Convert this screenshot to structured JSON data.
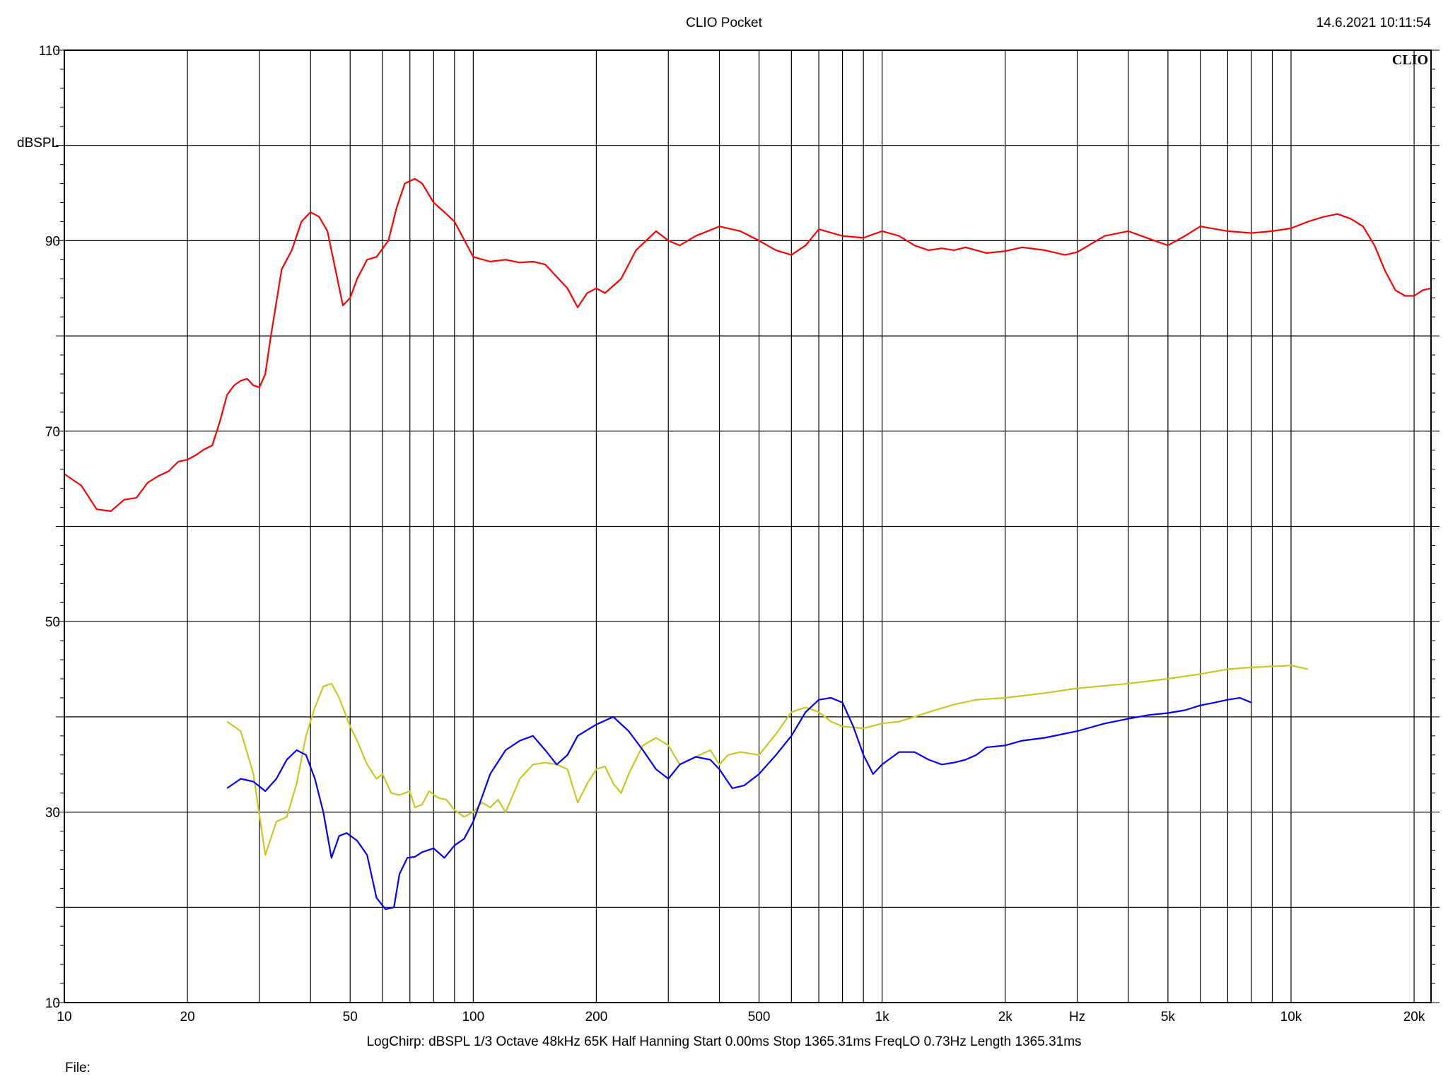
{
  "header": {
    "title": "CLIO Pocket",
    "timestamp": "14.6.2021 10:11:54"
  },
  "footer": {
    "status_line": "LogChirp:  dBSPL   1/3 Octave   48kHz   65K   Half Hanning    Start 0.00ms     Stop 1365.31ms     FreqLO 0.73Hz     Length 1365.31ms",
    "file_label": "File:"
  },
  "chart_data": {
    "type": "line",
    "logo": "CLIO",
    "ylabel": "dBSPL",
    "xlabel": "Hz",
    "xscale": "log",
    "xlim": [
      10,
      22000
    ],
    "ylim": [
      10,
      110
    ],
    "grid": true,
    "x_ticks": [
      {
        "value": 10,
        "label": "10"
      },
      {
        "value": 20,
        "label": "20"
      },
      {
        "value": 50,
        "label": "50"
      },
      {
        "value": 100,
        "label": "100"
      },
      {
        "value": 200,
        "label": "200"
      },
      {
        "value": 500,
        "label": "500"
      },
      {
        "value": 1000,
        "label": "1k"
      },
      {
        "value": 2000,
        "label": "2k"
      },
      {
        "value": 5000,
        "label": "5k"
      },
      {
        "value": 10000,
        "label": "10k"
      },
      {
        "value": 20000,
        "label": "20k"
      }
    ],
    "x_unit_label_at": 3000,
    "y_ticks": [
      {
        "value": 110,
        "label": "110"
      },
      {
        "value": 90,
        "label": "90"
      },
      {
        "value": 70,
        "label": "70"
      },
      {
        "value": 50,
        "label": "50"
      },
      {
        "value": 30,
        "label": "30"
      },
      {
        "value": 10,
        "label": "10"
      }
    ],
    "series": [
      {
        "color": "#ff0000",
        "points": [
          [
            10,
            65.5
          ],
          [
            11,
            64.3
          ],
          [
            12,
            61.8
          ],
          [
            13,
            61.6
          ],
          [
            14,
            62.8
          ],
          [
            15,
            63
          ],
          [
            16,
            64.6
          ],
          [
            17,
            65.3
          ],
          [
            18,
            65.8
          ],
          [
            19,
            66.8
          ],
          [
            20,
            67
          ],
          [
            21,
            67.5
          ],
          [
            22,
            68.1
          ],
          [
            23,
            68.5
          ],
          [
            24,
            71
          ],
          [
            25,
            73.8
          ],
          [
            26,
            74.8
          ],
          [
            27,
            75.3
          ],
          [
            28,
            75.5
          ],
          [
            29,
            74.8
          ],
          [
            30,
            74.6
          ],
          [
            31,
            76
          ],
          [
            32,
            80
          ],
          [
            34,
            87
          ],
          [
            36,
            89
          ],
          [
            38,
            92
          ],
          [
            40,
            93
          ],
          [
            42,
            92.5
          ],
          [
            44,
            91
          ],
          [
            46,
            87
          ],
          [
            48,
            83.2
          ],
          [
            50,
            84
          ],
          [
            52,
            86
          ],
          [
            55,
            88
          ],
          [
            58,
            88.3
          ],
          [
            62,
            90
          ],
          [
            65,
            93.5
          ],
          [
            68,
            96
          ],
          [
            72,
            96.5
          ],
          [
            75,
            96
          ],
          [
            80,
            94
          ],
          [
            85,
            93
          ],
          [
            90,
            92
          ],
          [
            100,
            88.3
          ],
          [
            110,
            87.8
          ],
          [
            120,
            88
          ],
          [
            130,
            87.7
          ],
          [
            140,
            87.8
          ],
          [
            150,
            87.5
          ],
          [
            170,
            85
          ],
          [
            180,
            83
          ],
          [
            190,
            84.5
          ],
          [
            200,
            85
          ],
          [
            210,
            84.5
          ],
          [
            230,
            86
          ],
          [
            250,
            89
          ],
          [
            280,
            91
          ],
          [
            300,
            90
          ],
          [
            320,
            89.5
          ],
          [
            350,
            90.5
          ],
          [
            400,
            91.5
          ],
          [
            450,
            91
          ],
          [
            500,
            90
          ],
          [
            550,
            89
          ],
          [
            600,
            88.5
          ],
          [
            650,
            89.5
          ],
          [
            700,
            91.2
          ],
          [
            800,
            90.5
          ],
          [
            900,
            90.3
          ],
          [
            1000,
            91
          ],
          [
            1100,
            90.5
          ],
          [
            1200,
            89.5
          ],
          [
            1300,
            89
          ],
          [
            1400,
            89.2
          ],
          [
            1500,
            89
          ],
          [
            1600,
            89.3
          ],
          [
            1800,
            88.7
          ],
          [
            2000,
            88.9
          ],
          [
            2200,
            89.3
          ],
          [
            2500,
            89
          ],
          [
            2800,
            88.5
          ],
          [
            3000,
            88.8
          ],
          [
            3500,
            90.5
          ],
          [
            4000,
            91
          ],
          [
            4500,
            90.2
          ],
          [
            5000,
            89.5
          ],
          [
            5500,
            90.5
          ],
          [
            6000,
            91.5
          ],
          [
            7000,
            91
          ],
          [
            8000,
            90.8
          ],
          [
            9000,
            91
          ],
          [
            10000,
            91.3
          ],
          [
            11000,
            92
          ],
          [
            12000,
            92.5
          ],
          [
            13000,
            92.8
          ],
          [
            14000,
            92.3
          ],
          [
            15000,
            91.5
          ],
          [
            16000,
            89.5
          ],
          [
            17000,
            86.8
          ],
          [
            18000,
            84.8
          ],
          [
            19000,
            84.2
          ],
          [
            20000,
            84.2
          ],
          [
            21000,
            84.8
          ],
          [
            22000,
            85
          ]
        ]
      },
      {
        "color": "#c8c820",
        "points": [
          [
            25,
            39.5
          ],
          [
            27,
            38.5
          ],
          [
            29,
            34
          ],
          [
            31,
            25.5
          ],
          [
            33,
            29
          ],
          [
            35,
            29.5
          ],
          [
            37,
            33
          ],
          [
            39,
            38
          ],
          [
            41,
            41
          ],
          [
            43,
            43.2
          ],
          [
            45,
            43.5
          ],
          [
            47,
            42
          ],
          [
            50,
            39
          ],
          [
            52,
            37.5
          ],
          [
            55,
            35
          ],
          [
            58,
            33.5
          ],
          [
            60,
            34
          ],
          [
            63,
            32
          ],
          [
            66,
            31.8
          ],
          [
            70,
            32.2
          ],
          [
            72,
            30.5
          ],
          [
            75,
            30.8
          ],
          [
            78,
            32.2
          ],
          [
            82,
            31.5
          ],
          [
            86,
            31.3
          ],
          [
            90,
            30.2
          ],
          [
            95,
            29.5
          ],
          [
            100,
            30
          ],
          [
            105,
            31
          ],
          [
            110,
            30.5
          ],
          [
            115,
            31.3
          ],
          [
            120,
            30
          ],
          [
            130,
            33.5
          ],
          [
            140,
            35
          ],
          [
            150,
            35.2
          ],
          [
            160,
            35
          ],
          [
            170,
            34.5
          ],
          [
            180,
            31
          ],
          [
            190,
            33
          ],
          [
            200,
            34.5
          ],
          [
            210,
            34.8
          ],
          [
            220,
            33
          ],
          [
            230,
            32
          ],
          [
            240,
            34
          ],
          [
            260,
            37
          ],
          [
            280,
            37.8
          ],
          [
            300,
            37
          ],
          [
            320,
            35
          ],
          [
            350,
            35.8
          ],
          [
            380,
            36.5
          ],
          [
            400,
            35
          ],
          [
            420,
            36
          ],
          [
            450,
            36.3
          ],
          [
            500,
            36
          ],
          [
            550,
            38.2
          ],
          [
            600,
            40.5
          ],
          [
            650,
            41
          ],
          [
            700,
            40.5
          ],
          [
            750,
            39.5
          ],
          [
            800,
            39
          ],
          [
            900,
            38.8
          ],
          [
            1000,
            39.3
          ],
          [
            1100,
            39.5
          ],
          [
            1200,
            40
          ],
          [
            1300,
            40.5
          ],
          [
            1500,
            41.3
          ],
          [
            1700,
            41.8
          ],
          [
            2000,
            42
          ],
          [
            2500,
            42.5
          ],
          [
            3000,
            43
          ],
          [
            4000,
            43.5
          ],
          [
            5000,
            44
          ],
          [
            6000,
            44.5
          ],
          [
            7000,
            45
          ],
          [
            8000,
            45.2
          ],
          [
            9000,
            45.3
          ],
          [
            10000,
            45.4
          ],
          [
            11000,
            45
          ]
        ]
      },
      {
        "color": "#0000ff",
        "points": [
          [
            25,
            32.5
          ],
          [
            27,
            33.5
          ],
          [
            29,
            33.2
          ],
          [
            31,
            32.2
          ],
          [
            33,
            33.5
          ],
          [
            35,
            35.5
          ],
          [
            37,
            36.5
          ],
          [
            39,
            36
          ],
          [
            41,
            33.5
          ],
          [
            43,
            30
          ],
          [
            45,
            25.2
          ],
          [
            47,
            27.5
          ],
          [
            49,
            27.8
          ],
          [
            52,
            27
          ],
          [
            55,
            25.5
          ],
          [
            58,
            21
          ],
          [
            61,
            19.8
          ],
          [
            64,
            20
          ],
          [
            66,
            23.5
          ],
          [
            69,
            25.2
          ],
          [
            72,
            25.3
          ],
          [
            75,
            25.8
          ],
          [
            80,
            26.2
          ],
          [
            85,
            25.2
          ],
          [
            90,
            26.5
          ],
          [
            95,
            27.2
          ],
          [
            100,
            29
          ],
          [
            110,
            34
          ],
          [
            120,
            36.5
          ],
          [
            130,
            37.5
          ],
          [
            140,
            38
          ],
          [
            150,
            36.5
          ],
          [
            160,
            35
          ],
          [
            170,
            36
          ],
          [
            180,
            38
          ],
          [
            200,
            39.2
          ],
          [
            220,
            40
          ],
          [
            240,
            38.5
          ],
          [
            260,
            36.5
          ],
          [
            280,
            34.5
          ],
          [
            300,
            33.5
          ],
          [
            320,
            35
          ],
          [
            350,
            35.8
          ],
          [
            380,
            35.5
          ],
          [
            400,
            34.5
          ],
          [
            430,
            32.5
          ],
          [
            460,
            32.8
          ],
          [
            500,
            34
          ],
          [
            550,
            36
          ],
          [
            600,
            38
          ],
          [
            650,
            40.5
          ],
          [
            700,
            41.8
          ],
          [
            750,
            42
          ],
          [
            800,
            41.5
          ],
          [
            850,
            39
          ],
          [
            900,
            36
          ],
          [
            950,
            34
          ],
          [
            1000,
            35
          ],
          [
            1100,
            36.3
          ],
          [
            1200,
            36.3
          ],
          [
            1300,
            35.5
          ],
          [
            1400,
            35
          ],
          [
            1500,
            35.2
          ],
          [
            1600,
            35.5
          ],
          [
            1700,
            36
          ],
          [
            1800,
            36.8
          ],
          [
            2000,
            37
          ],
          [
            2200,
            37.5
          ],
          [
            2500,
            37.8
          ],
          [
            3000,
            38.5
          ],
          [
            3500,
            39.3
          ],
          [
            4000,
            39.8
          ],
          [
            4500,
            40.2
          ],
          [
            5000,
            40.4
          ],
          [
            5500,
            40.7
          ],
          [
            6000,
            41.2
          ],
          [
            6500,
            41.5
          ],
          [
            7000,
            41.8
          ],
          [
            7500,
            42
          ],
          [
            8000,
            41.5
          ]
        ]
      }
    ]
  }
}
